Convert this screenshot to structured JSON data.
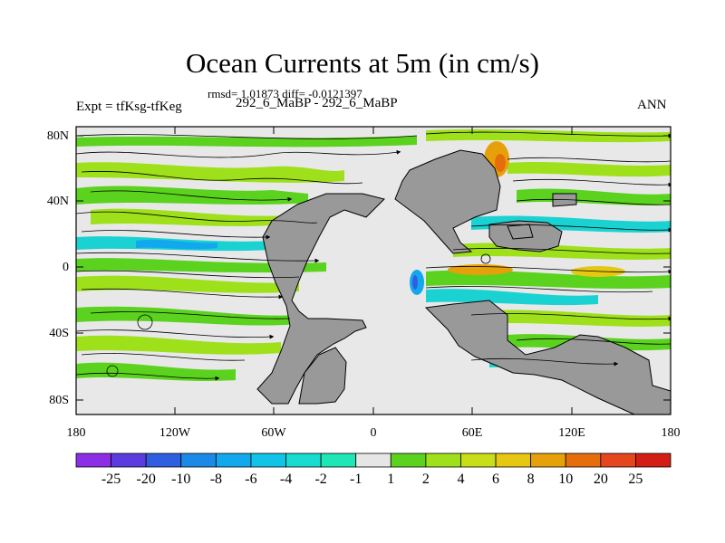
{
  "title": "Ocean Currents at 5m (in cm/s)",
  "stats_line": "rmsd= 1.01873 diff= -0.0121397",
  "experiment_label": "Expt = tfKsg-tfKeg",
  "comparison_label": "292_6_MaBP - 292_6_MaBP",
  "season_label": "ANN",
  "x_tick_labels": [
    "180",
    "120W",
    "60W",
    "0",
    "60E",
    "120E",
    "180"
  ],
  "y_tick_labels": [
    "80N",
    "40N",
    "0",
    "40S",
    "80S"
  ],
  "colorbar": {
    "labels": [
      "-25",
      "-20",
      "-10",
      "-8",
      "-6",
      "-4",
      "-2",
      "-1",
      "1",
      "2",
      "4",
      "6",
      "8",
      "10",
      "20",
      "25"
    ],
    "colors": [
      "#8c2ee6",
      "#5a3ce0",
      "#2f5fe0",
      "#1a8ae6",
      "#12a8ee",
      "#10c4e8",
      "#18dccf",
      "#1ee6b4",
      "#e6e6e6",
      "#5ad21e",
      "#9ee01a",
      "#c8de18",
      "#e6c812",
      "#e6a00a",
      "#e66e0a",
      "#e6461e",
      "#d21e14"
    ]
  },
  "map": {
    "ocean_background": "#e8e8e8",
    "land_color": "#999999",
    "current_colors": [
      "#5ad21e",
      "#9ee01a",
      "#1ad2d2",
      "#12a8ee",
      "#e6a00a",
      "#e66e0a"
    ]
  }
}
